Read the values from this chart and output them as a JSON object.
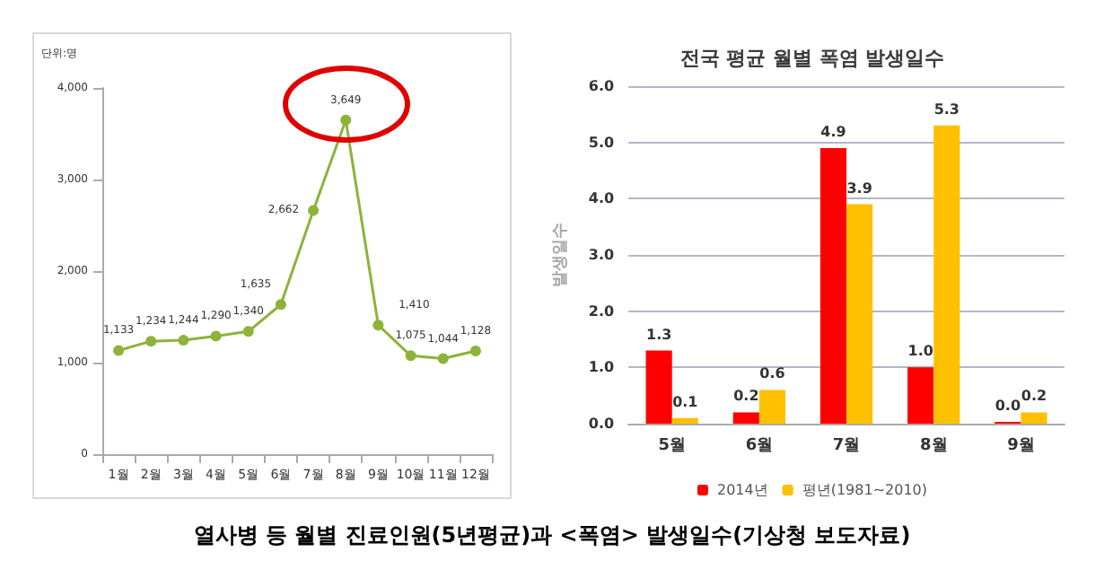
{
  "chart_data": [
    {
      "type": "line",
      "ylabel": "단위:명",
      "categories": [
        "1월",
        "2월",
        "3월",
        "4월",
        "5월",
        "6월",
        "7월",
        "8월",
        "9월",
        "10월",
        "11월",
        "12월"
      ],
      "series": [
        {
          "color": "#8db33a",
          "values": [
            1133,
            1234,
            1244,
            1290,
            1340,
            1635,
            2662,
            3649,
            1410,
            1075,
            1044,
            1128
          ],
          "value_labels": [
            "1,133",
            "1,234",
            "1,244",
            "1,290",
            "1,340",
            "1,635",
            "2,662",
            "3,649",
            "1,410",
            "1,075",
            "1,044",
            "1,128"
          ]
        }
      ],
      "ylim": [
        0,
        4000
      ],
      "yticks": [
        0,
        {
          "value": 1000,
          "label": "1,000"
        },
        {
          "value": 2000,
          "label": "2,000"
        },
        {
          "value": 3000,
          "label": "3,000"
        },
        {
          "value": 4000,
          "label": "4,000"
        }
      ],
      "grid": false,
      "legend": false,
      "marker": "circle",
      "line_style": "solid",
      "annotations": [
        "열사병 등 월별 진료인원(5년평균)과 <폭염> 발생일수(기상청 보도자료)"
      ]
    },
    {
      "type": "bar",
      "title": "전국 평균 월별 폭염 발생일수",
      "ylabel": "발생일수",
      "categories": [
        "5월",
        "6월",
        "7월",
        "8월",
        "9월"
      ],
      "series": [
        {
          "name": "2014년",
          "color": "#ff0000",
          "values": [
            1.3,
            0.2,
            4.9,
            1.0,
            0.0
          ],
          "value_labels": [
            "1.3",
            "0.2",
            "4.9",
            "1.0",
            "0.0"
          ]
        },
        {
          "name": "평년(1981~2010)",
          "color": "#ffc000",
          "values": [
            0.1,
            0.6,
            3.9,
            5.3,
            0.2
          ],
          "value_labels": [
            "0.1",
            "0.6",
            "3.9",
            "5.3",
            "0.2"
          ]
        }
      ],
      "ylim": [
        0,
        6
      ],
      "yticks": [
        {
          "value": 0,
          "label": "0.0"
        },
        {
          "value": 1,
          "label": "1.0"
        },
        {
          "value": 2,
          "label": "2.0"
        },
        {
          "value": 3,
          "label": "3.0"
        },
        {
          "value": 4,
          "label": "4.0"
        },
        {
          "value": 5,
          "label": "5.0"
        },
        {
          "value": 6,
          "label": "6.0"
        }
      ],
      "grid": "y",
      "legend": "bottom"
    }
  ]
}
